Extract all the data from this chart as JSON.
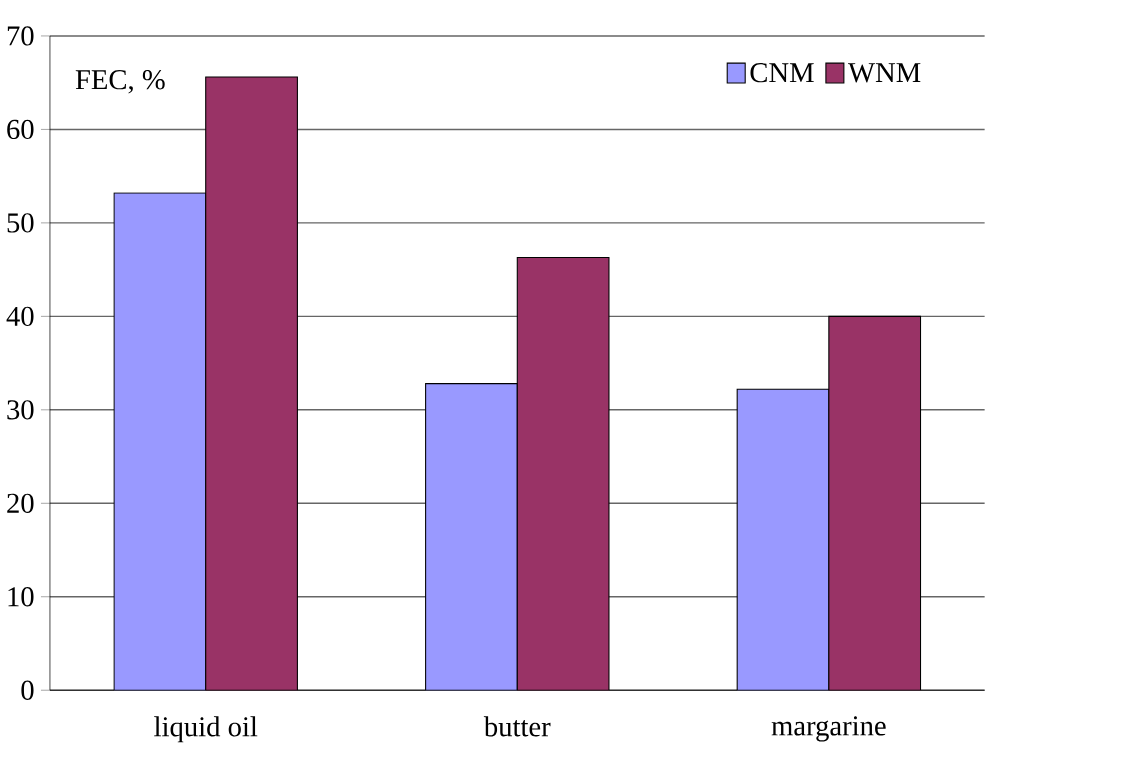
{
  "chart_data": {
    "type": "bar",
    "ylabel": "FEC, %",
    "categories": [
      "liquid oil",
      "butter",
      "margarine"
    ],
    "series": [
      {
        "name": "CNM",
        "color": "#9999ff",
        "values": [
          53.2,
          32.8,
          32.2
        ]
      },
      {
        "name": "WNM",
        "color": "#993366",
        "values": [
          65.6,
          46.3,
          40.0
        ]
      }
    ],
    "ylim": [
      0,
      70
    ],
    "yticks": [
      0,
      10,
      20,
      30,
      40,
      50,
      60,
      70
    ],
    "grid": "y",
    "legend": "top right"
  }
}
